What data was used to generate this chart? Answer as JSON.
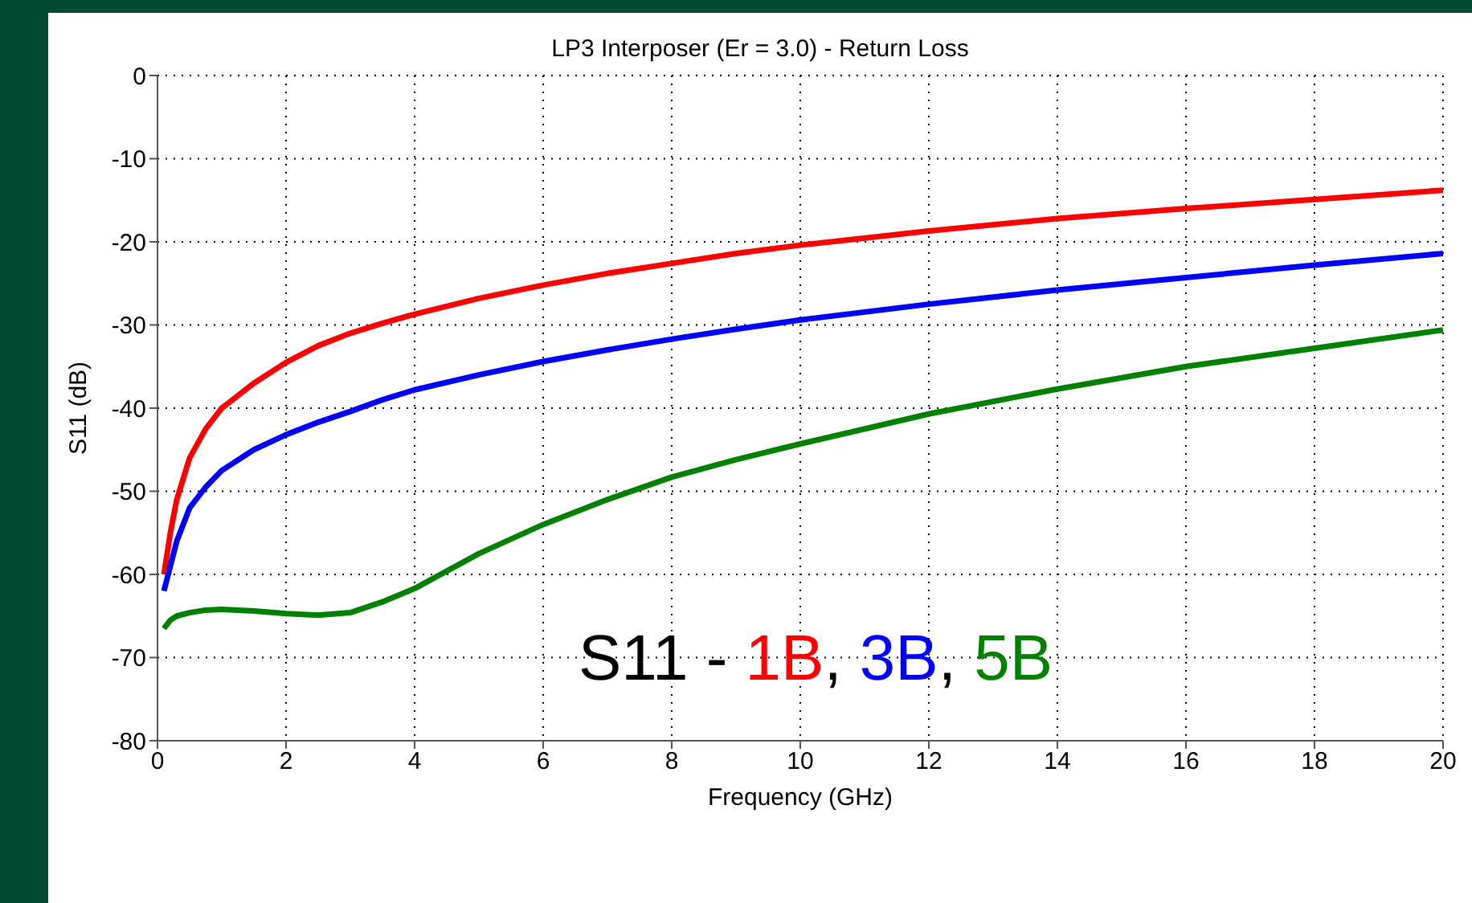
{
  "chart_data": {
    "type": "line",
    "title": "LP3 Interposer (Er = 3.0) - Return Loss",
    "xlabel": "Frequency (GHz)",
    "ylabel": "S11 (dB)",
    "annotations": [
      "S11 - ",
      ", ",
      ", "
    ],
    "x": [
      0.1,
      0.2,
      0.3,
      0.5,
      0.75,
      1,
      1.5,
      2,
      2.5,
      3,
      3.5,
      4,
      5,
      6,
      7,
      8,
      9,
      10,
      12,
      14,
      16,
      18,
      20
    ],
    "series": [
      {
        "name": "1B",
        "color": "#ff0000",
        "values": [
          -60,
          -55,
          -51,
          -46,
          -42.5,
          -40,
          -37,
          -34.5,
          -32.5,
          -31,
          -29.8,
          -28.7,
          -26.8,
          -25.2,
          -23.8,
          -22.6,
          -21.4,
          -20.4,
          -18.7,
          -17.2,
          -16,
          -14.9,
          -13.8
        ]
      },
      {
        "name": "3B",
        "color": "#0000ff",
        "values": [
          -62,
          -59,
          -56,
          -52,
          -49.5,
          -47.5,
          -45,
          -43.2,
          -41.7,
          -40.4,
          -39,
          -37.8,
          -36,
          -34.4,
          -33,
          -31.7,
          -30.5,
          -29.4,
          -27.5,
          -25.8,
          -24.3,
          -22.8,
          -21.4
        ]
      },
      {
        "name": "5B",
        "color": "#008000",
        "values": [
          -66.5,
          -65.5,
          -65,
          -64.6,
          -64.3,
          -64.2,
          -64.4,
          -64.7,
          -64.9,
          -64.6,
          -63.3,
          -61.7,
          -57.5,
          -54,
          -51,
          -48.3,
          -46.2,
          -44.3,
          -40.7,
          -37.7,
          -35,
          -32.8,
          -30.6
        ]
      }
    ],
    "xlim": [
      0,
      20
    ],
    "xticks": [
      0,
      2,
      4,
      6,
      8,
      10,
      12,
      14,
      16,
      18,
      20
    ],
    "ylim": [
      -80,
      0
    ],
    "yticks": [
      -80,
      -70,
      -60,
      -50,
      -40,
      -30,
      -20,
      -10,
      0
    ],
    "grid": true,
    "legend": "bottom",
    "marker": "none",
    "line_style": "solid"
  }
}
